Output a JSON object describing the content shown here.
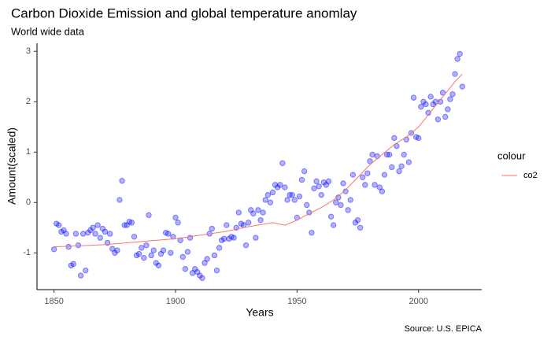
{
  "chart_data": {
    "type": "scatter",
    "title": "Carbon Dioxide Emission and global temperature anomlay",
    "subtitle": "World wide data",
    "caption": "Source: U.S. EPICA",
    "x_label": "Years",
    "y_label": "Amount(scaled)",
    "legend_title": "colour",
    "legend": "right",
    "color": "#0000ff",
    "x": [
      1850,
      1851,
      1852,
      1853,
      1854,
      1855,
      1856,
      1857,
      1858,
      1859,
      1860,
      1861,
      1862,
      1863,
      1864,
      1865,
      1866,
      1867,
      1868,
      1869,
      1870,
      1871,
      1872,
      1873,
      1874,
      1875,
      1876,
      1877,
      1878,
      1879,
      1880,
      1881,
      1882,
      1883,
      1884,
      1885,
      1886,
      1887,
      1888,
      1889,
      1890,
      1891,
      1892,
      1893,
      1894,
      1895,
      1896,
      1897,
      1898,
      1899,
      1900,
      1901,
      1902,
      1903,
      1904,
      1905,
      1906,
      1907,
      1908,
      1909,
      1910,
      1911,
      1912,
      1913,
      1914,
      1915,
      1916,
      1917,
      1918,
      1919,
      1920,
      1921,
      1922,
      1923,
      1924,
      1925,
      1926,
      1927,
      1928,
      1929,
      1930,
      1931,
      1932,
      1933,
      1934,
      1935,
      1936,
      1937,
      1938,
      1939,
      1940,
      1941,
      1942,
      1943,
      1944,
      1945,
      1946,
      1947,
      1948,
      1949,
      1950,
      1951,
      1952,
      1953,
      1954,
      1955,
      1956,
      1957,
      1958,
      1959,
      1960,
      1961,
      1962,
      1963,
      1964,
      1965,
      1966,
      1967,
      1968,
      1969,
      1970,
      1971,
      1972,
      1973,
      1974,
      1975,
      1976,
      1977,
      1978,
      1979,
      1980,
      1981,
      1982,
      1983,
      1984,
      1985,
      1986,
      1987,
      1988,
      1989,
      1990,
      1991,
      1992,
      1993,
      1994,
      1995,
      1996,
      1997,
      1998,
      1999,
      2000,
      2001,
      2002,
      2003,
      2004,
      2005,
      2006,
      2007,
      2008,
      2009,
      2010,
      2011,
      2012,
      2013,
      2014,
      2015,
      2016,
      2017,
      2018
    ],
    "values": [
      -0.93,
      -0.42,
      -0.45,
      -0.58,
      -0.55,
      -0.62,
      -0.88,
      -1.25,
      -1.22,
      -0.62,
      -0.85,
      -1.45,
      -0.62,
      -1.35,
      -0.6,
      -0.55,
      -0.5,
      -0.62,
      -0.45,
      -0.7,
      -0.52,
      -0.58,
      -0.8,
      -0.62,
      -0.92,
      -1.0,
      -0.95,
      0.05,
      0.43,
      -0.45,
      -0.45,
      -0.38,
      -0.4,
      -0.68,
      -1.05,
      -1.02,
      -0.9,
      -1.1,
      -0.85,
      -0.25,
      -1.05,
      -0.95,
      -1.2,
      -1.25,
      -1.02,
      -0.95,
      -0.6,
      -0.62,
      -1.0,
      -0.68,
      -0.3,
      -0.4,
      -0.75,
      -1.08,
      -1.32,
      -0.98,
      -0.7,
      -1.4,
      -1.32,
      -1.38,
      -1.45,
      -1.5,
      -1.2,
      -1.12,
      -0.62,
      -0.52,
      -1.05,
      -1.35,
      -0.9,
      -0.75,
      -0.72,
      -0.45,
      -0.72,
      -0.68,
      -0.7,
      -0.5,
      -0.2,
      -0.42,
      -0.45,
      -0.85,
      -0.4,
      -0.15,
      -0.22,
      -0.7,
      -0.15,
      -0.35,
      -0.2,
      0.05,
      0.15,
      0.0,
      0.2,
      0.35,
      0.3,
      0.35,
      0.78,
      0.3,
      0.05,
      0.15,
      0.15,
      0.05,
      -0.3,
      0.12,
      0.45,
      0.62,
      -0.05,
      -0.2,
      -0.6,
      0.28,
      0.42,
      0.32,
      0.15,
      0.4,
      0.35,
      0.42,
      -0.28,
      -0.45,
      0.0,
      0.1,
      -0.05,
      0.38,
      0.22,
      -0.15,
      0.05,
      0.55,
      -0.4,
      -0.35,
      -0.5,
      0.5,
      0.35,
      0.58,
      0.82,
      0.95,
      0.35,
      0.92,
      0.3,
      0.22,
      0.55,
      0.95,
      0.95,
      0.7,
      1.28,
      1.12,
      0.62,
      0.72,
      0.95,
      1.25,
      0.8,
      1.38,
      2.08,
      1.3,
      1.28,
      1.9,
      2.0,
      1.95,
      1.78,
      2.1,
      1.95,
      2.0,
      1.65,
      2.0,
      2.18,
      1.7,
      1.85,
      2.05,
      2.15,
      2.55,
      2.85,
      2.95,
      2.3
    ],
    "series": [
      {
        "name": "co2",
        "type": "line",
        "color": "#f8766d",
        "x": [
          1850,
          1860,
          1870,
          1880,
          1890,
          1900,
          1910,
          1920,
          1930,
          1940,
          1945,
          1950,
          1955,
          1960,
          1965,
          1970,
          1975,
          1980,
          1985,
          1990,
          1995,
          2000,
          2005,
          2010,
          2015,
          2018
        ],
        "values": [
          -0.88,
          -0.86,
          -0.84,
          -0.8,
          -0.76,
          -0.72,
          -0.65,
          -0.58,
          -0.48,
          -0.4,
          -0.45,
          -0.35,
          -0.22,
          -0.1,
          0.05,
          0.25,
          0.5,
          0.75,
          0.95,
          1.15,
          1.3,
          1.5,
          1.8,
          2.1,
          2.4,
          2.55
        ]
      }
    ],
    "xlim": [
      1843,
      2026
    ],
    "ylim": [
      -1.73,
      3.16
    ],
    "xticks": [
      1850,
      1900,
      1950,
      2000
    ],
    "yticks": [
      -1,
      0,
      1,
      2,
      3
    ]
  }
}
